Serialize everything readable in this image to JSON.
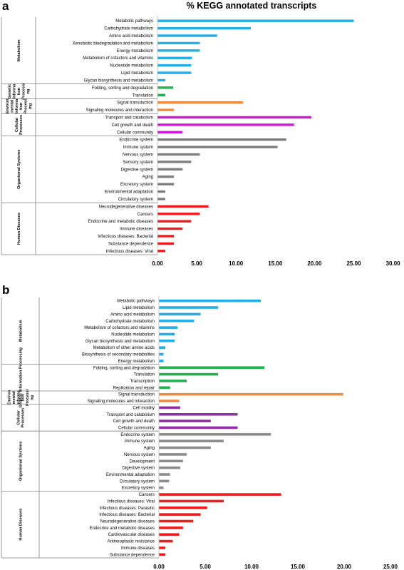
{
  "chart_data": [
    {
      "type": "bar",
      "orientation": "horizontal",
      "panel": "a",
      "title": "% KEGG annotated transcripts",
      "xlim": [
        0,
        30
      ],
      "xticks": [
        "0.00",
        "5.00",
        "10.00",
        "15.00",
        "20.00",
        "25.00",
        "30.00"
      ],
      "grid": false,
      "groups": [
        {
          "label_lines": [
            "Metabolism"
          ],
          "color": "#22aee8",
          "categories": [
            "Metabolic pathways",
            "Carbohydrate metabolism",
            "Amino acid metabolism",
            "Xenobiotic biodegradation and metabolism",
            "Energy metabolism",
            "Metabolism of cofactors and vitamins",
            "Nucleotide metabolism",
            "Lipid metabolism",
            "Glycan biosynthesis and metabolism"
          ],
          "values": [
            25.0,
            11.9,
            7.6,
            5.4,
            5.4,
            4.4,
            4.3,
            4.3,
            1.0
          ]
        },
        {
          "label_lines": [
            "Genetic",
            "Informa",
            "tion",
            "Processi",
            "ng"
          ],
          "color": "#23b04f",
          "categories": [
            "Folding, sorting and degradation",
            "Translation"
          ],
          "values": [
            2.0,
            1.0
          ]
        },
        {
          "label_lines": [
            "Environ",
            "mental",
            "Informa",
            "tion",
            "Process",
            "ing"
          ],
          "color": "#f08a3c",
          "categories": [
            "Signal transduction",
            "Signaling molecules and interaction"
          ],
          "values": [
            10.9,
            2.1
          ]
        },
        {
          "label_lines": [
            "Cellular",
            "Processes"
          ],
          "color": "#d317d8",
          "categories": [
            "Transport and catabolism",
            "Cell growth and death",
            "Cellular community"
          ],
          "values": [
            19.6,
            17.4,
            3.2
          ]
        },
        {
          "label_lines": [
            "Organismal Systems"
          ],
          "color": "#7f7f7f",
          "categories": [
            "Endocrine system",
            "Immune system",
            "Nervous system",
            "Sensory system",
            "Digestive system",
            "Aging",
            "Excretory system",
            "Environmental adaptation",
            "Circulatory system"
          ],
          "values": [
            16.4,
            15.3,
            5.4,
            4.3,
            3.2,
            2.1,
            2.1,
            1.0,
            1.0
          ]
        },
        {
          "label_lines": [
            "Human Diseases"
          ],
          "color": "#ee1c1c",
          "categories": [
            "Neurodegenerative diseases",
            "Cancers",
            "Endocrine and metabolic diseases",
            "Immune diseases",
            "Infectious diseases: Bacterial",
            "Substance dependence",
            "Infectious diseases: Viral"
          ],
          "values": [
            6.5,
            5.4,
            4.3,
            3.2,
            2.1,
            2.1,
            1.0
          ]
        }
      ]
    },
    {
      "type": "bar",
      "orientation": "horizontal",
      "panel": "b",
      "title": "",
      "xlim": [
        0,
        25
      ],
      "xticks": [
        "0.00",
        "5.00",
        "10.00",
        "15.00",
        "20.00",
        "25.00"
      ],
      "grid": false,
      "groups": [
        {
          "label_lines": [
            "Metabolism"
          ],
          "color": "#22aee8",
          "categories": [
            "Metabolic pathways",
            "Lipid metabolism",
            "Amino acid metabolism",
            "Carbohydrate metabolism",
            "Metabolism of cofactors and vitamins",
            "Nucleotide metabolism",
            "Glycan biosynthesis and metabolism",
            "Metabolism of other amino acids",
            "Biosynthesis of secondary metabolites",
            "Energy metabolism"
          ],
          "values": [
            11.0,
            6.4,
            4.5,
            3.8,
            2.0,
            1.7,
            1.7,
            0.7,
            0.5,
            0.5
          ]
        },
        {
          "label_lines": [
            "Genetic",
            "Information",
            "Processing"
          ],
          "color": "#23b04f",
          "categories": [
            "Folding, sorting and degradation",
            "Translation",
            "Transcription",
            "Replication and repair"
          ],
          "values": [
            11.4,
            6.4,
            3.0,
            1.2
          ]
        },
        {
          "label_lines": [
            "Environ",
            "mental",
            "Informa",
            "tion",
            "Processi",
            "ng"
          ],
          "color": "#f08a3c",
          "categories": [
            "Signal transduction",
            "Signaling molecules and interaction"
          ],
          "values": [
            19.9,
            2.2
          ]
        },
        {
          "label_lines": [
            "Cellular",
            "Processes"
          ],
          "color": "#8f2fa3",
          "categories": [
            "Cell motility",
            "Transport and catabolism",
            "Cell growth and death",
            "Cellular community"
          ],
          "values": [
            2.3,
            8.5,
            5.6,
            8.5
          ]
        },
        {
          "label_lines": [
            "Organismal Systems"
          ],
          "color": "#8c8c8c",
          "categories": [
            "Endocrine system",
            "Immune system",
            "Aging",
            "Nervous system",
            "Development",
            "Digestive system",
            "Environmental adaptation",
            "Circulatory system",
            "Excretory system"
          ],
          "values": [
            12.1,
            7.0,
            5.6,
            3.0,
            2.6,
            2.3,
            1.2,
            1.1,
            0.5
          ]
        },
        {
          "label_lines": [
            "Human Diseases"
          ],
          "color": "#ee1c1c",
          "categories": [
            "Cancers",
            "Infectious diseases: Viral",
            "Infectious diseases: Parasitic",
            "Infectious diseases: Bacterial",
            "Neurodegenerative diseases",
            "Endocrine and metabolic diseases",
            "Cardiovascular diseases",
            "Antineoplastic resistance",
            "Immune diseases",
            "Substance dependence"
          ],
          "values": [
            13.2,
            7.0,
            5.2,
            4.5,
            3.7,
            2.6,
            2.2,
            1.5,
            0.7,
            0.7
          ]
        }
      ]
    }
  ]
}
